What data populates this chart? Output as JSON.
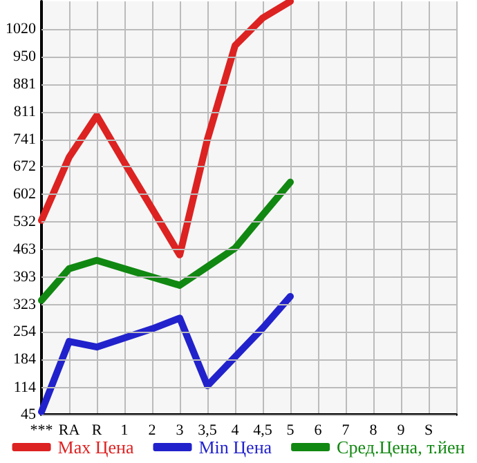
{
  "chart_data": {
    "type": "line",
    "categories": [
      "***",
      "RA",
      "R",
      "1",
      "2",
      "3",
      "3,5",
      "4",
      "4,5",
      "5",
      "6",
      "7",
      "8",
      "9",
      "S",
      null
    ],
    "series": [
      {
        "name": "Max Цена",
        "color": "#dd2222",
        "values": [
          536,
          696,
          801,
          682,
          566,
          449,
          741,
          978,
          1048,
          1090,
          null,
          null,
          null,
          null,
          null,
          null
        ]
      },
      {
        "name": "Min Цена",
        "color": "#2222cc",
        "values": [
          52,
          230,
          216,
          239,
          262,
          289,
          118,
          191,
          264,
          344,
          null,
          null,
          null,
          null,
          null,
          null
        ]
      },
      {
        "name": "Сред.Цена, т.йен",
        "color": "#118811",
        "values": [
          334,
          414,
          435,
          414,
          393,
          372,
          419,
          466,
          550,
          633,
          null,
          null,
          null,
          null,
          null,
          null
        ]
      }
    ],
    "ylim": [
      45,
      1090
    ],
    "yticks": [
      45,
      114,
      184,
      254,
      323,
      393,
      463,
      532,
      602,
      672,
      741,
      811,
      881,
      950,
      1020
    ],
    "grid": true,
    "legend": "bottom",
    "marker": "none",
    "line_style": "solid"
  }
}
